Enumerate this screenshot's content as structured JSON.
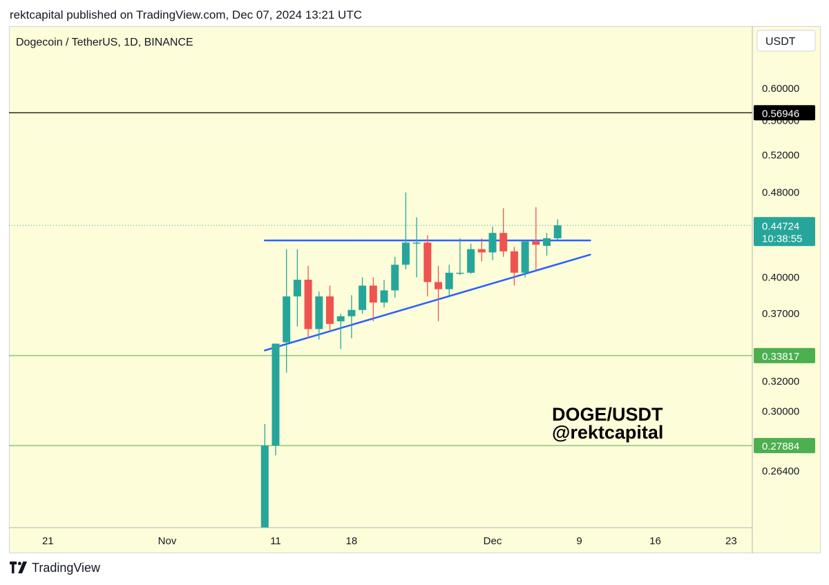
{
  "header": {
    "published": "rektcapital published on TradingView.com, Dec 07, 2024 13:21 UTC"
  },
  "footer": {
    "brand": "TradingView"
  },
  "colors": {
    "background": "#fefdd9",
    "up": "#26a69a",
    "down": "#ef5350",
    "trendline": "#2962ff",
    "support": "#4caf50",
    "resistance": "#000000"
  },
  "chart_data": {
    "type": "candlestick",
    "title": "Dogecoin / TetherUS, 1D, BINANCE",
    "currency": "USDT",
    "watermark": [
      "DOGE/USDT",
      "@rektcapital"
    ],
    "x_ticks": [
      {
        "date": "2024-10-21",
        "label": "21"
      },
      {
        "date": "2024-11-01",
        "label": "Nov"
      },
      {
        "date": "2024-11-11",
        "label": "11"
      },
      {
        "date": "2024-11-18",
        "label": "18"
      },
      {
        "date": "2024-12-01",
        "label": "Dec"
      },
      {
        "date": "2024-12-09",
        "label": "9"
      },
      {
        "date": "2024-12-16",
        "label": "16"
      },
      {
        "date": "2024-12-23",
        "label": "23"
      }
    ],
    "y_ticks": [
      0.264,
      0.3,
      0.32,
      0.37,
      0.4,
      0.48,
      0.52,
      0.56,
      0.6
    ],
    "y_tick_labels": [
      "0.26400",
      "0.30000",
      "0.32000",
      "0.37000",
      "0.40000",
      "0.48000",
      "0.52000",
      "0.56000",
      "0.60000"
    ],
    "candles": [
      {
        "date": "2024-11-10",
        "open": 0.215,
        "high": 0.292,
        "low": 0.215,
        "close": 0.2788
      },
      {
        "date": "2024-11-11",
        "open": 0.2788,
        "high": 0.347,
        "low": 0.273,
        "close": 0.347
      },
      {
        "date": "2024-11-12",
        "open": 0.348,
        "high": 0.425,
        "low": 0.326,
        "close": 0.384
      },
      {
        "date": "2024-11-13",
        "open": 0.384,
        "high": 0.425,
        "low": 0.36,
        "close": 0.398
      },
      {
        "date": "2024-11-14",
        "open": 0.398,
        "high": 0.41,
        "low": 0.351,
        "close": 0.358
      },
      {
        "date": "2024-11-15",
        "open": 0.358,
        "high": 0.388,
        "low": 0.35,
        "close": 0.384
      },
      {
        "date": "2024-11-16",
        "open": 0.384,
        "high": 0.393,
        "low": 0.356,
        "close": 0.362
      },
      {
        "date": "2024-11-17",
        "open": 0.364,
        "high": 0.37,
        "low": 0.343,
        "close": 0.368
      },
      {
        "date": "2024-11-18",
        "open": 0.368,
        "high": 0.385,
        "low": 0.351,
        "close": 0.373
      },
      {
        "date": "2024-11-19",
        "open": 0.373,
        "high": 0.4,
        "low": 0.37,
        "close": 0.393
      },
      {
        "date": "2024-11-20",
        "open": 0.393,
        "high": 0.4,
        "low": 0.364,
        "close": 0.379
      },
      {
        "date": "2024-11-21",
        "open": 0.379,
        "high": 0.398,
        "low": 0.375,
        "close": 0.389
      },
      {
        "date": "2024-11-22",
        "open": 0.389,
        "high": 0.418,
        "low": 0.383,
        "close": 0.411
      },
      {
        "date": "2024-11-23",
        "open": 0.411,
        "high": 0.48,
        "low": 0.407,
        "close": 0.431
      },
      {
        "date": "2024-11-24",
        "open": 0.431,
        "high": 0.455,
        "low": 0.4,
        "close": 0.431
      },
      {
        "date": "2024-11-25",
        "open": 0.431,
        "high": 0.438,
        "low": 0.384,
        "close": 0.396
      },
      {
        "date": "2024-11-26",
        "open": 0.396,
        "high": 0.41,
        "low": 0.364,
        "close": 0.39
      },
      {
        "date": "2024-11-27",
        "open": 0.39,
        "high": 0.411,
        "low": 0.385,
        "close": 0.404
      },
      {
        "date": "2024-11-28",
        "open": 0.404,
        "high": 0.435,
        "low": 0.402,
        "close": 0.404
      },
      {
        "date": "2024-11-29",
        "open": 0.404,
        "high": 0.43,
        "low": 0.403,
        "close": 0.425
      },
      {
        "date": "2024-11-30",
        "open": 0.425,
        "high": 0.435,
        "low": 0.414,
        "close": 0.422
      },
      {
        "date": "2024-12-01",
        "open": 0.422,
        "high": 0.446,
        "low": 0.415,
        "close": 0.44
      },
      {
        "date": "2024-12-02",
        "open": 0.44,
        "high": 0.464,
        "low": 0.418,
        "close": 0.423
      },
      {
        "date": "2024-12-03",
        "open": 0.423,
        "high": 0.427,
        "low": 0.393,
        "close": 0.404
      },
      {
        "date": "2024-12-04",
        "open": 0.404,
        "high": 0.433,
        "low": 0.4,
        "close": 0.432
      },
      {
        "date": "2024-12-05",
        "open": 0.432,
        "high": 0.465,
        "low": 0.406,
        "close": 0.429
      },
      {
        "date": "2024-12-06",
        "open": 0.428,
        "high": 0.44,
        "low": 0.419,
        "close": 0.435
      },
      {
        "date": "2024-12-07",
        "open": 0.435,
        "high": 0.453,
        "low": 0.433,
        "close": 0.4472
      }
    ],
    "horizontal_levels": [
      {
        "value": 0.56946,
        "label": "0.56946",
        "color": "#000000"
      },
      {
        "value": 0.33817,
        "label": "0.33817",
        "color": "#4caf50"
      },
      {
        "value": 0.27884,
        "label": "0.27884",
        "color": "#4caf50"
      }
    ],
    "current_price": {
      "value": 0.44724,
      "label": "0.44724",
      "countdown": "10:38:55",
      "color": "#26a69a"
    },
    "trendlines": [
      {
        "from": {
          "date": "2024-11-10",
          "value": 0.433
        },
        "to": {
          "date": "2024-12-10",
          "value": 0.433
        },
        "color": "#2962ff"
      },
      {
        "from": {
          "date": "2024-11-10",
          "value": 0.342
        },
        "to": {
          "date": "2024-12-10",
          "value": 0.42
        },
        "color": "#2962ff"
      }
    ]
  }
}
